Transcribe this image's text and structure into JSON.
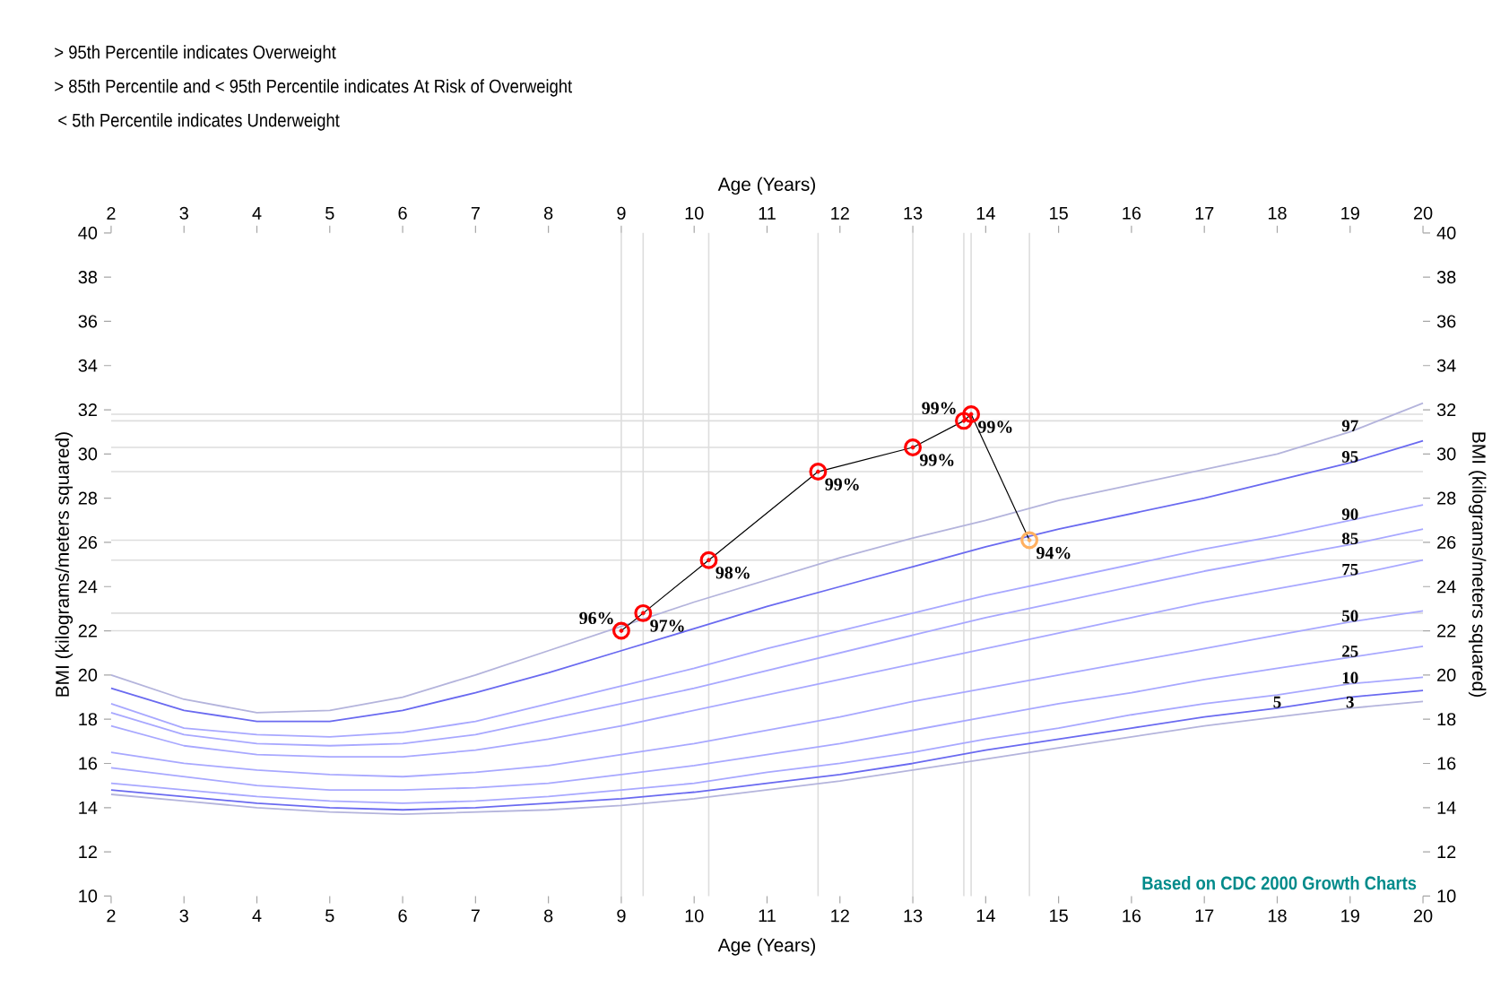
{
  "chart_data": {
    "type": "line",
    "annotations": [
      "> 95th Percentile indicates Overweight",
      "> 85th Percentile and < 95th Percentile indicates At Risk of Overweight",
      "< 5th Percentile indicates Underweight",
      "Based on CDC 2000 Growth Charts",
      {
        "text": "96%",
        "x": 9.0,
        "y": 22.0
      },
      {
        "text": "97%",
        "x": 9.3,
        "y": 22.8
      },
      {
        "text": "98%",
        "x": 10.2,
        "y": 25.2
      },
      {
        "text": "99%",
        "x": 11.7,
        "y": 29.2
      },
      {
        "text": "99%",
        "x": 13.0,
        "y": 30.3
      },
      {
        "text": "99%",
        "x": 13.7,
        "y": 31.5
      },
      {
        "text": "99%",
        "x": 13.8,
        "y": 31.8
      },
      {
        "text": "94%",
        "x": 14.6,
        "y": 26.1
      }
    ],
    "xlabel": "Age (Years)",
    "x2label": "Age (Years)",
    "ylabel": "BMI (kilograms/meters squared)",
    "y2label": "BMI (kilograms/meters squared)",
    "x": [
      2,
      3,
      4,
      5,
      6,
      7,
      8,
      9,
      10,
      11,
      12,
      13,
      14,
      15,
      16,
      17,
      18,
      19,
      20
    ],
    "xlim": [
      2,
      20
    ],
    "xticks": [
      2,
      3,
      4,
      5,
      6,
      7,
      8,
      9,
      10,
      11,
      12,
      13,
      14,
      15,
      16,
      17,
      18,
      19,
      20
    ],
    "x2lim": [
      2,
      20
    ],
    "x2ticks": [
      2,
      3,
      4,
      5,
      6,
      7,
      8,
      9,
      10,
      11,
      12,
      13,
      14,
      15,
      16,
      17,
      18,
      19,
      20
    ],
    "ylim": [
      10,
      40
    ],
    "yticks": [
      10,
      12,
      14,
      16,
      18,
      20,
      22,
      24,
      26,
      28,
      30,
      32,
      34,
      36,
      38,
      40
    ],
    "y2lim": [
      10,
      40
    ],
    "y2ticks": [
      10,
      12,
      14,
      16,
      18,
      20,
      22,
      24,
      26,
      28,
      30,
      32,
      34,
      36,
      38,
      40
    ],
    "legend": false,
    "grid": false,
    "ref_lines": [
      {
        "axis": "x",
        "value": 9.0,
        "color": "#dddddd"
      },
      {
        "axis": "x",
        "value": 9.3,
        "color": "#dddddd"
      },
      {
        "axis": "x",
        "value": 10.2,
        "color": "#dddddd"
      },
      {
        "axis": "x",
        "value": 11.7,
        "color": "#dddddd"
      },
      {
        "axis": "x",
        "value": 13.0,
        "color": "#dddddd"
      },
      {
        "axis": "x",
        "value": 13.7,
        "color": "#dddddd"
      },
      {
        "axis": "x",
        "value": 13.8,
        "color": "#dddddd"
      },
      {
        "axis": "x",
        "value": 14.6,
        "color": "#dddddd"
      },
      {
        "axis": "y",
        "value": 22.0,
        "color": "#dddddd"
      },
      {
        "axis": "y",
        "value": 22.8,
        "color": "#dddddd"
      },
      {
        "axis": "y",
        "value": 25.2,
        "color": "#dddddd"
      },
      {
        "axis": "y",
        "value": 29.2,
        "color": "#dddddd"
      },
      {
        "axis": "y",
        "value": 30.3,
        "color": "#dddddd"
      },
      {
        "axis": "y",
        "value": 31.5,
        "color": "#dddddd"
      },
      {
        "axis": "y",
        "value": 31.8,
        "color": "#dddddd"
      },
      {
        "axis": "y",
        "value": 26.1,
        "color": "#dddddd"
      }
    ],
    "series": [
      {
        "name": "97",
        "color": "#b4b4dc",
        "marker": "none",
        "values": [
          20.0,
          18.9,
          18.3,
          18.4,
          19.0,
          20.0,
          21.1,
          22.2,
          23.3,
          24.3,
          25.3,
          26.2,
          27.0,
          27.9,
          28.6,
          29.3,
          30.0,
          31.0,
          32.3
        ]
      },
      {
        "name": "95",
        "color": "#6a6af0",
        "marker": "none",
        "values": [
          19.4,
          18.4,
          17.9,
          17.9,
          18.4,
          19.2,
          20.1,
          21.1,
          22.1,
          23.1,
          24.0,
          24.9,
          25.8,
          26.6,
          27.3,
          28.0,
          28.8,
          29.6,
          30.6
        ]
      },
      {
        "name": "90",
        "color": "#a8a8ff",
        "marker": "none",
        "values": [
          18.7,
          17.6,
          17.3,
          17.2,
          17.4,
          17.9,
          18.7,
          19.5,
          20.3,
          21.2,
          22.0,
          22.8,
          23.6,
          24.3,
          25.0,
          25.7,
          26.3,
          27.0,
          27.7
        ]
      },
      {
        "name": "85",
        "color": "#a8a8ff",
        "marker": "none",
        "values": [
          18.3,
          17.3,
          16.9,
          16.8,
          16.9,
          17.3,
          18.0,
          18.7,
          19.4,
          20.2,
          21.0,
          21.8,
          22.6,
          23.3,
          24.0,
          24.7,
          25.3,
          25.9,
          26.6
        ]
      },
      {
        "name": "75",
        "color": "#a8a8ff",
        "marker": "none",
        "values": [
          17.7,
          16.8,
          16.4,
          16.3,
          16.3,
          16.6,
          17.1,
          17.7,
          18.4,
          19.1,
          19.8,
          20.5,
          21.2,
          21.9,
          22.6,
          23.3,
          23.9,
          24.5,
          25.2
        ]
      },
      {
        "name": "50",
        "color": "#a8a8ff",
        "marker": "none",
        "values": [
          16.5,
          16.0,
          15.7,
          15.5,
          15.4,
          15.6,
          15.9,
          16.4,
          16.9,
          17.5,
          18.1,
          18.8,
          19.4,
          20.0,
          20.6,
          21.2,
          21.8,
          22.4,
          22.9
        ]
      },
      {
        "name": "25",
        "color": "#a8a8ff",
        "marker": "none",
        "values": [
          15.8,
          15.4,
          15.0,
          14.8,
          14.8,
          14.9,
          15.1,
          15.5,
          15.9,
          16.4,
          16.9,
          17.5,
          18.1,
          18.7,
          19.2,
          19.8,
          20.3,
          20.8,
          21.3
        ]
      },
      {
        "name": "10",
        "color": "#a8a8ff",
        "marker": "none",
        "values": [
          15.1,
          14.8,
          14.5,
          14.3,
          14.2,
          14.3,
          14.5,
          14.8,
          15.1,
          15.6,
          16.0,
          16.5,
          17.1,
          17.6,
          18.2,
          18.7,
          19.1,
          19.6,
          19.9
        ]
      },
      {
        "name": "5",
        "color": "#6a6af0",
        "marker": "none",
        "values": [
          14.8,
          14.5,
          14.2,
          14.0,
          13.9,
          14.0,
          14.2,
          14.4,
          14.7,
          15.1,
          15.5,
          16.0,
          16.6,
          17.1,
          17.6,
          18.1,
          18.5,
          19.0,
          19.3
        ]
      },
      {
        "name": "3",
        "color": "#b4b4dc",
        "marker": "none",
        "values": [
          14.6,
          14.3,
          14.0,
          13.8,
          13.7,
          13.8,
          13.9,
          14.1,
          14.4,
          14.8,
          15.2,
          15.7,
          16.2,
          16.7,
          17.2,
          17.7,
          18.1,
          18.5,
          18.8
        ]
      },
      {
        "color": "#000000",
        "marker": "circle",
        "x": [
          9.0,
          9.3,
          10.2,
          11.7,
          13.0,
          13.7,
          13.8,
          14.6
        ],
        "values": [
          22.0,
          22.8,
          25.2,
          29.2,
          30.3,
          31.5,
          31.8,
          26.1
        ],
        "colors": [
          "#ff0000",
          "#ff0000",
          "#ff0000",
          "#ff0000",
          "#ff0000",
          "#ff0000",
          "#ff0000",
          "#ffb060"
        ]
      }
    ]
  }
}
